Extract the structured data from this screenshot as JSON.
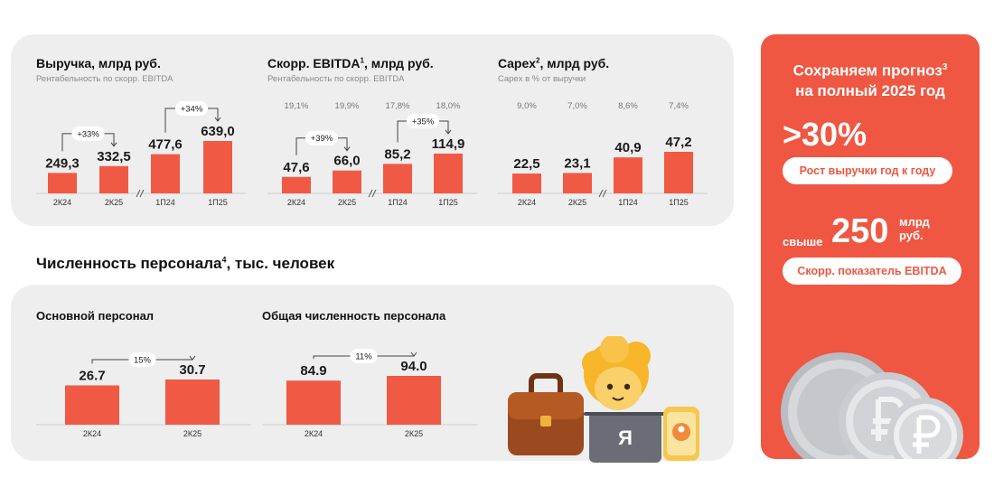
{
  "chart_data": [
    {
      "type": "bar",
      "title": "Выручка, млрд руб.",
      "subtitle": "Рентабельность по скорр. EBITDA",
      "categories": [
        "2К24",
        "2К25",
        "1П24",
        "1П25"
      ],
      "values": [
        249.3,
        332.5,
        477.6,
        639.0
      ],
      "value_labels": [
        "249,3",
        "332,5",
        "477,6",
        "639,0"
      ],
      "top_labels": [],
      "growth": [
        {
          "from": 0,
          "to": 1,
          "label": "+33%"
        },
        {
          "from": 2,
          "to": 3,
          "label": "+34%"
        }
      ],
      "ylim": [
        0,
        700
      ]
    },
    {
      "type": "bar",
      "title": "Скорр. EBITDA",
      "title_sup": "1",
      "title_rest": ", млрд руб.",
      "subtitle": "Рентабельность по скорр. EBITDA",
      "categories": [
        "2К24",
        "2К25",
        "1П24",
        "1П25"
      ],
      "values": [
        47.6,
        66.0,
        85.2,
        114.9
      ],
      "value_labels": [
        "47,6",
        "66,0",
        "85,2",
        "114,9"
      ],
      "top_labels": [
        "19,1%",
        "19,9%",
        "17,8%",
        "18,0%"
      ],
      "growth": [
        {
          "from": 0,
          "to": 1,
          "label": "+39%"
        },
        {
          "from": 2,
          "to": 3,
          "label": "+35%"
        }
      ],
      "ylim": [
        0,
        150
      ]
    },
    {
      "type": "bar",
      "title": "Capex",
      "title_sup": "2",
      "title_rest": ", млрд руб.",
      "subtitle": "Capex в % от выручки",
      "categories": [
        "2К24",
        "2К25",
        "1П24",
        "1П25"
      ],
      "values": [
        22.5,
        23.1,
        40.9,
        47.2
      ],
      "value_labels": [
        "22,5",
        "23,1",
        "40,9",
        "47,2"
      ],
      "top_labels": [
        "9,0%",
        "7,0%",
        "8,6%",
        "7,4%"
      ],
      "growth": [],
      "ylim": [
        0,
        55
      ]
    },
    {
      "type": "bar",
      "title": "Основной персонал",
      "subtitle": "",
      "categories": [
        "2К24",
        "2К25"
      ],
      "values": [
        26.7,
        30.7
      ],
      "value_labels": [
        "26.7",
        "30.7"
      ],
      "top_labels": [],
      "growth": [
        {
          "from": 0,
          "to": 1,
          "label": "15%"
        }
      ],
      "ylim": [
        0,
        100
      ]
    },
    {
      "type": "bar",
      "title": "Общая численность персонала",
      "subtitle": "",
      "categories": [
        "2К24",
        "2К25"
      ],
      "values": [
        84.9,
        94.0
      ],
      "value_labels": [
        "84.9",
        "94.0"
      ],
      "top_labels": [],
      "growth": [
        {
          "from": 0,
          "to": 1,
          "label": "11%"
        }
      ],
      "ylim": [
        0,
        100
      ]
    }
  ],
  "section": {
    "title": "Численность персонала",
    "title_sup": "4",
    "title_rest": ", тыс. человек"
  },
  "promo": {
    "title_line1": "Сохраняем прогноз",
    "title_sup": "3",
    "title_line2": "на полный 2025 год",
    "pct": ">30%",
    "pill1": "Рост выручки год к году",
    "prefix": "свыше",
    "number": "250",
    "unit_line1": "млрд",
    "unit_line2": "руб.",
    "pill2": "Скорр. показатель EBITDA"
  },
  "mascot": {
    "laptop_letter": "Я"
  },
  "colors": {
    "bar": "#f05a44",
    "promo_bg": "#ef5742",
    "panel_bg": "#eeeeef"
  }
}
